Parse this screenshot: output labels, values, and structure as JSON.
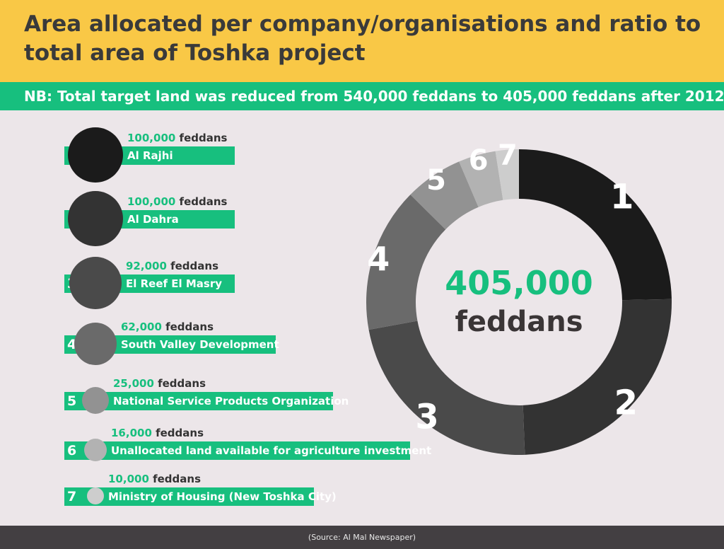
{
  "title": "Area allocated per company/organisations and ratio to total area of Toshka project",
  "note": "NB: Total target land was reduced from 540,000 feddans to 405,000 feddans after 2012.",
  "source": "(Source: Al Mal Newspaper)",
  "colors": {
    "accent": "#17bf7e",
    "header": "#f9c846",
    "background": "#ece6e9",
    "footer": "#433f42"
  },
  "legend": [
    {
      "num": "1",
      "value": "100,000",
      "unit": "feddans",
      "label": "Al Rajhi",
      "color": "#1b1b1b"
    },
    {
      "num": "2",
      "value": "100,000",
      "unit": "feddans",
      "label": "Al Dahra",
      "color": "#333333"
    },
    {
      "num": "3",
      "value": "92,000",
      "unit": "feddans",
      "label": "El Reef El Masry",
      "color": "#4a4a4a"
    },
    {
      "num": "4",
      "value": "62,000",
      "unit": "feddans",
      "label": "South Valley Development",
      "color": "#6a6a6a"
    },
    {
      "num": "5",
      "value": "25,000",
      "unit": "feddans",
      "label": "National Service Products Organization",
      "color": "#929292"
    },
    {
      "num": "6",
      "value": "16,000",
      "unit": "feddans",
      "label": "Unallocated land available for agriculture investment",
      "color": "#b2b2b2"
    },
    {
      "num": "7",
      "value": "10,000",
      "unit": "feddans",
      "label": "Ministry of Housing (New Toshka City)",
      "color": "#cdcdcd"
    }
  ],
  "center": {
    "value": "405,000",
    "unit": "feddans"
  },
  "chart_data": {
    "type": "pie",
    "donut": true,
    "total": 405000,
    "categories": [
      "1",
      "2",
      "3",
      "4",
      "5",
      "6",
      "7"
    ],
    "values": [
      100000,
      100000,
      92000,
      62000,
      25000,
      16000,
      10000
    ],
    "colors": [
      "#1b1b1b",
      "#333333",
      "#4a4a4a",
      "#6a6a6a",
      "#929292",
      "#b2b2b2",
      "#cdcdcd"
    ]
  }
}
